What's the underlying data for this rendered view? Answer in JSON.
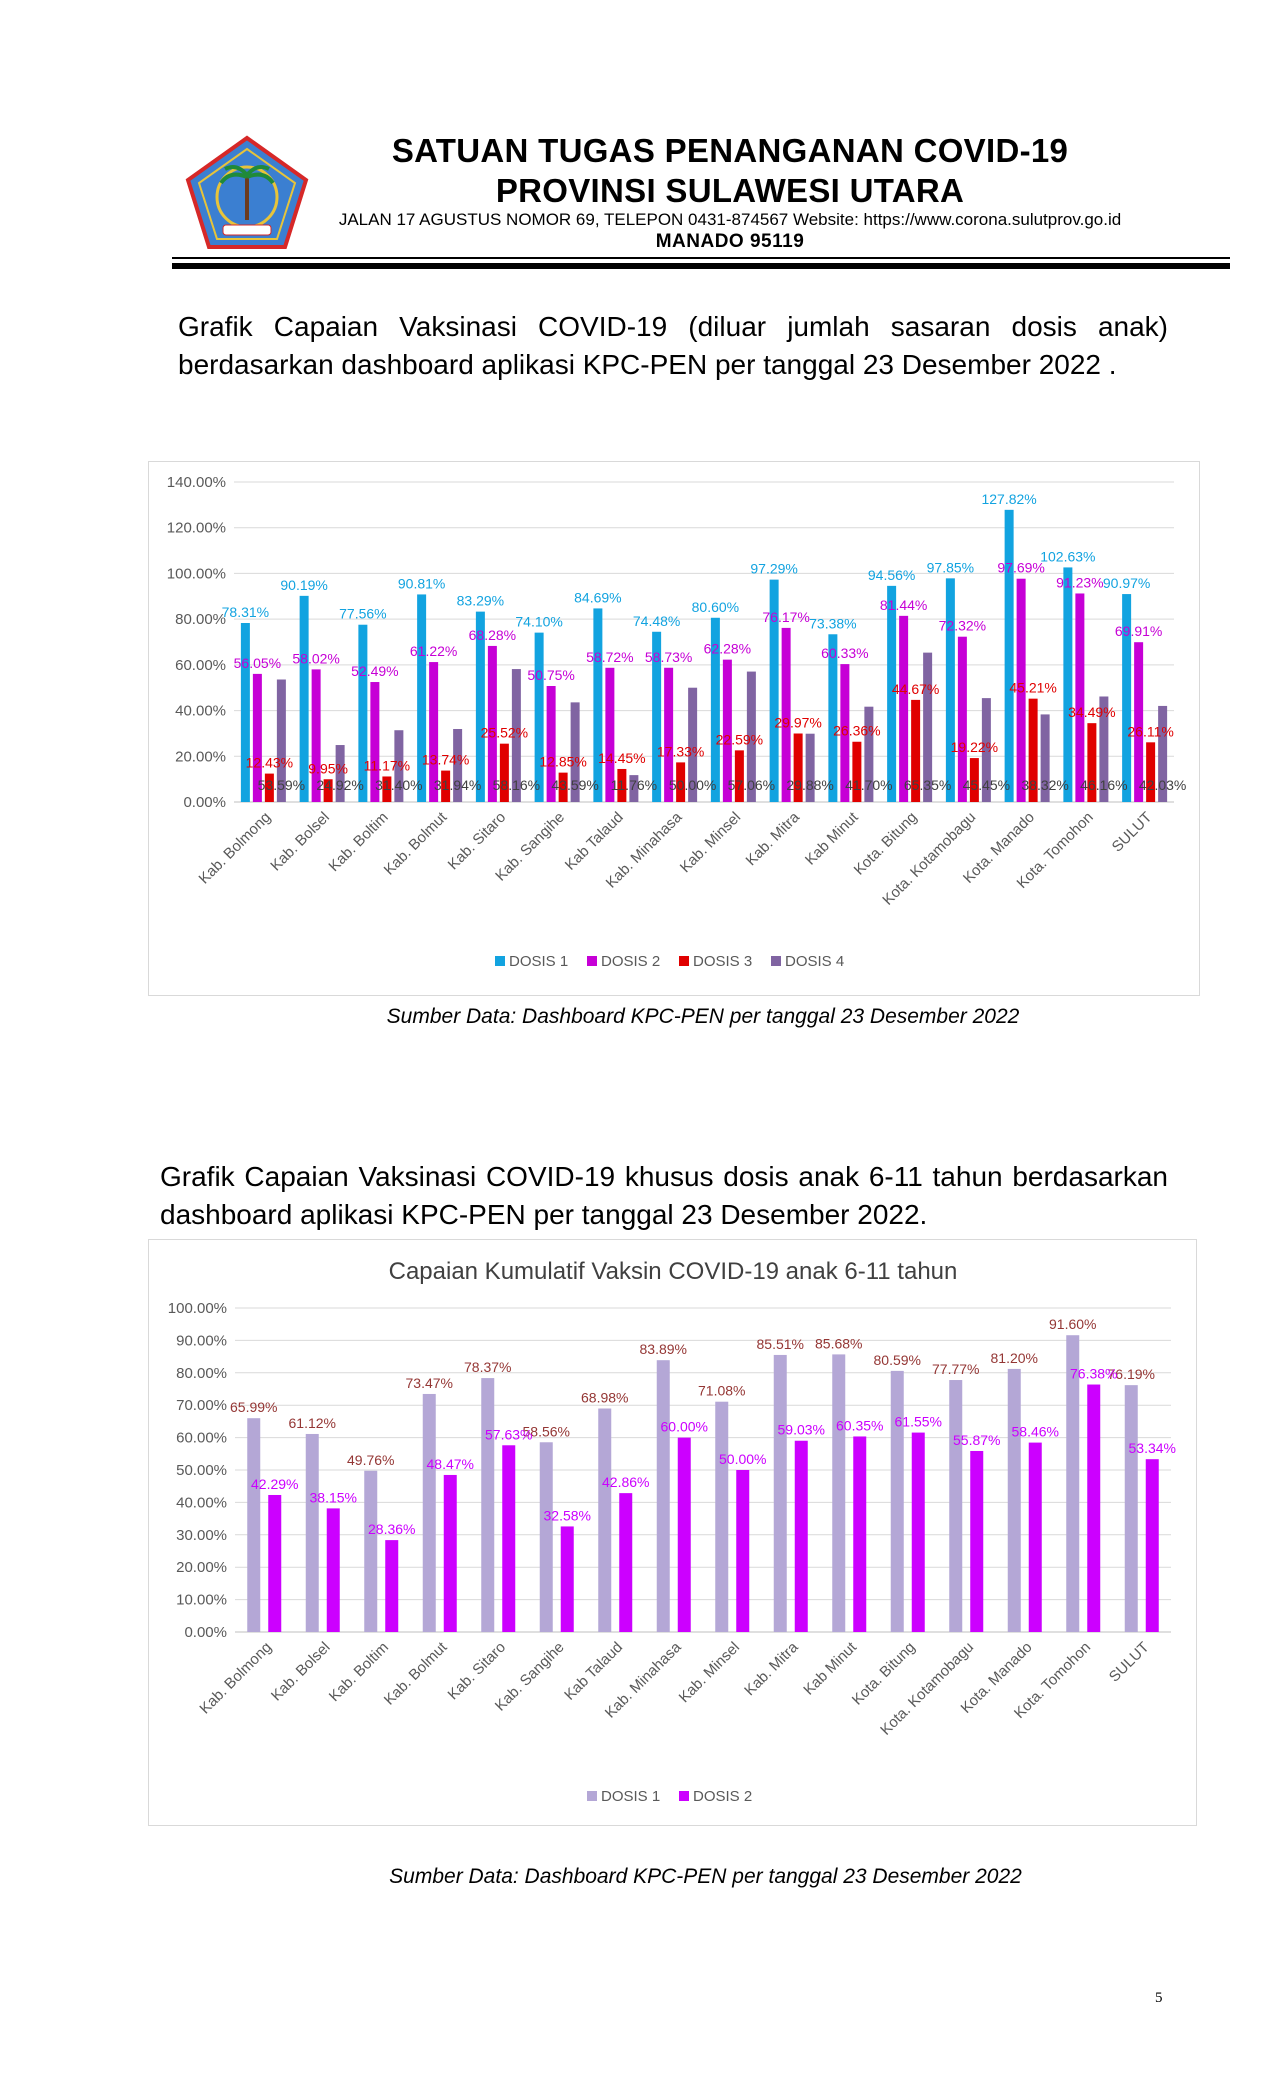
{
  "header": {
    "title_line1": "SATUAN TUGAS PENANGANAN COVID-19",
    "title_line2": "PROVINSI SULAWESI UTARA",
    "address": "JALAN 17 AGUSTUS NOMOR 69, TELEPON 0431-874567 Website: https://www.corona.sulutprov.go.id",
    "city": "MANADO  95119",
    "logo_icon": "provincial-emblem-icon",
    "colors": {
      "logo_blue": "#3b7fd1",
      "logo_red": "#d62828",
      "logo_gold": "#e7c43a"
    }
  },
  "section1": {
    "intro": "Grafik Capaian Vaksinasi COVID-19 (diluar jumlah sasaran dosis anak) berdasarkan dashboard aplikasi KPC-PEN per tanggal 23 Desember 2022 .",
    "source": "Sumber Data: Dashboard KPC-PEN per tanggal 23 Desember 2022"
  },
  "section2": {
    "intro": "Grafik Capaian Vaksinasi COVID-19 khusus dosis anak 6-11 tahun berdasarkan dashboard aplikasi KPC-PEN per tanggal 23 Desember 2022.",
    "source": "Sumber Data: Dashboard KPC-PEN per tanggal 23 Desember 2022"
  },
  "page_number": "5",
  "chart_data": [
    {
      "type": "bar",
      "title": "",
      "categories": [
        "Kab. Bolmong",
        "Kab. Bolsel",
        "Kab. Boltim",
        "Kab. Bolmut",
        "Kab. Sitaro",
        "Kab. Sangihe",
        "Kab Talaud",
        "Kab. Minahasa",
        "Kab. Minsel",
        "Kab. Mitra",
        "Kab Minut",
        "Kota. Bitung",
        "Kota. Kotamobagu",
        "Kota. Manado",
        "Kota. Tomohon",
        "SULUT"
      ],
      "series": [
        {
          "name": "DOSIS 1",
          "color": "#12a3e0",
          "label_color": "#12a3e0",
          "values": [
            78.31,
            90.19,
            77.56,
            90.81,
            83.29,
            74.1,
            84.69,
            74.48,
            80.6,
            97.29,
            73.38,
            94.56,
            97.85,
            127.82,
            102.63,
            90.97
          ]
        },
        {
          "name": "DOSIS 2",
          "color": "#c600d6",
          "label_color": "#c600d6",
          "values": [
            56.05,
            58.02,
            52.49,
            61.22,
            68.28,
            50.75,
            58.72,
            58.73,
            62.28,
            76.17,
            60.33,
            81.44,
            72.32,
            97.69,
            91.23,
            69.91
          ]
        },
        {
          "name": "DOSIS 3",
          "color": "#e00000",
          "label_color": "#e00000",
          "values": [
            12.43,
            9.95,
            11.17,
            13.74,
            25.52,
            12.85,
            14.45,
            17.33,
            22.59,
            29.97,
            26.36,
            44.67,
            19.22,
            45.21,
            34.49,
            26.11
          ]
        },
        {
          "name": "DOSIS 4",
          "color": "#8064a2",
          "label_color": "#404040",
          "values": [
            53.59,
            24.92,
            31.4,
            31.94,
            58.16,
            43.59,
            11.76,
            50.0,
            57.06,
            29.88,
            41.7,
            65.35,
            45.45,
            38.32,
            46.16,
            42.03
          ]
        }
      ],
      "value_format": "percent_2dp",
      "ylim": [
        0,
        140
      ],
      "yticks": [
        "0.00%",
        "20.00%",
        "40.00%",
        "60.00%",
        "80.00%",
        "100.00%",
        "120.00%",
        "140.00%"
      ],
      "grid": true,
      "legend": "bottom"
    },
    {
      "type": "bar",
      "title": "Capaian Kumulatif Vaksin COVID-19 anak 6-11 tahun",
      "categories": [
        "Kab. Bolmong",
        "Kab. Bolsel",
        "Kab. Boltim",
        "Kab. Bolmut",
        "Kab. Sitaro",
        "Kab. Sangihe",
        "Kab Talaud",
        "Kab. Minahasa",
        "Kab. Minsel",
        "Kab. Mitra",
        "Kab Minut",
        "Kota. Bitung",
        "Kota. Kotamobagu",
        "Kota. Manado",
        "Kota. Tomohon",
        "SULUT"
      ],
      "series": [
        {
          "name": "DOSIS 1",
          "color": "#b4a7d6",
          "label_color": "#943634",
          "values": [
            65.99,
            61.12,
            49.76,
            73.47,
            78.37,
            58.56,
            68.98,
            83.89,
            71.08,
            85.51,
            85.68,
            80.59,
            77.77,
            81.2,
            91.6,
            76.19
          ]
        },
        {
          "name": "DOSIS 2",
          "color": "#cc00ff",
          "label_color": "#cc00ff",
          "values": [
            42.29,
            38.15,
            28.36,
            48.47,
            57.63,
            32.58,
            42.86,
            60.0,
            50.0,
            59.03,
            60.35,
            61.55,
            55.87,
            58.46,
            76.38,
            53.34
          ]
        }
      ],
      "value_format": "percent_2dp",
      "ylim": [
        0,
        100
      ],
      "yticks": [
        "0.00%",
        "10.00%",
        "20.00%",
        "30.00%",
        "40.00%",
        "50.00%",
        "60.00%",
        "70.00%",
        "80.00%",
        "90.00%",
        "100.00%"
      ],
      "grid": true,
      "legend": "bottom"
    }
  ]
}
